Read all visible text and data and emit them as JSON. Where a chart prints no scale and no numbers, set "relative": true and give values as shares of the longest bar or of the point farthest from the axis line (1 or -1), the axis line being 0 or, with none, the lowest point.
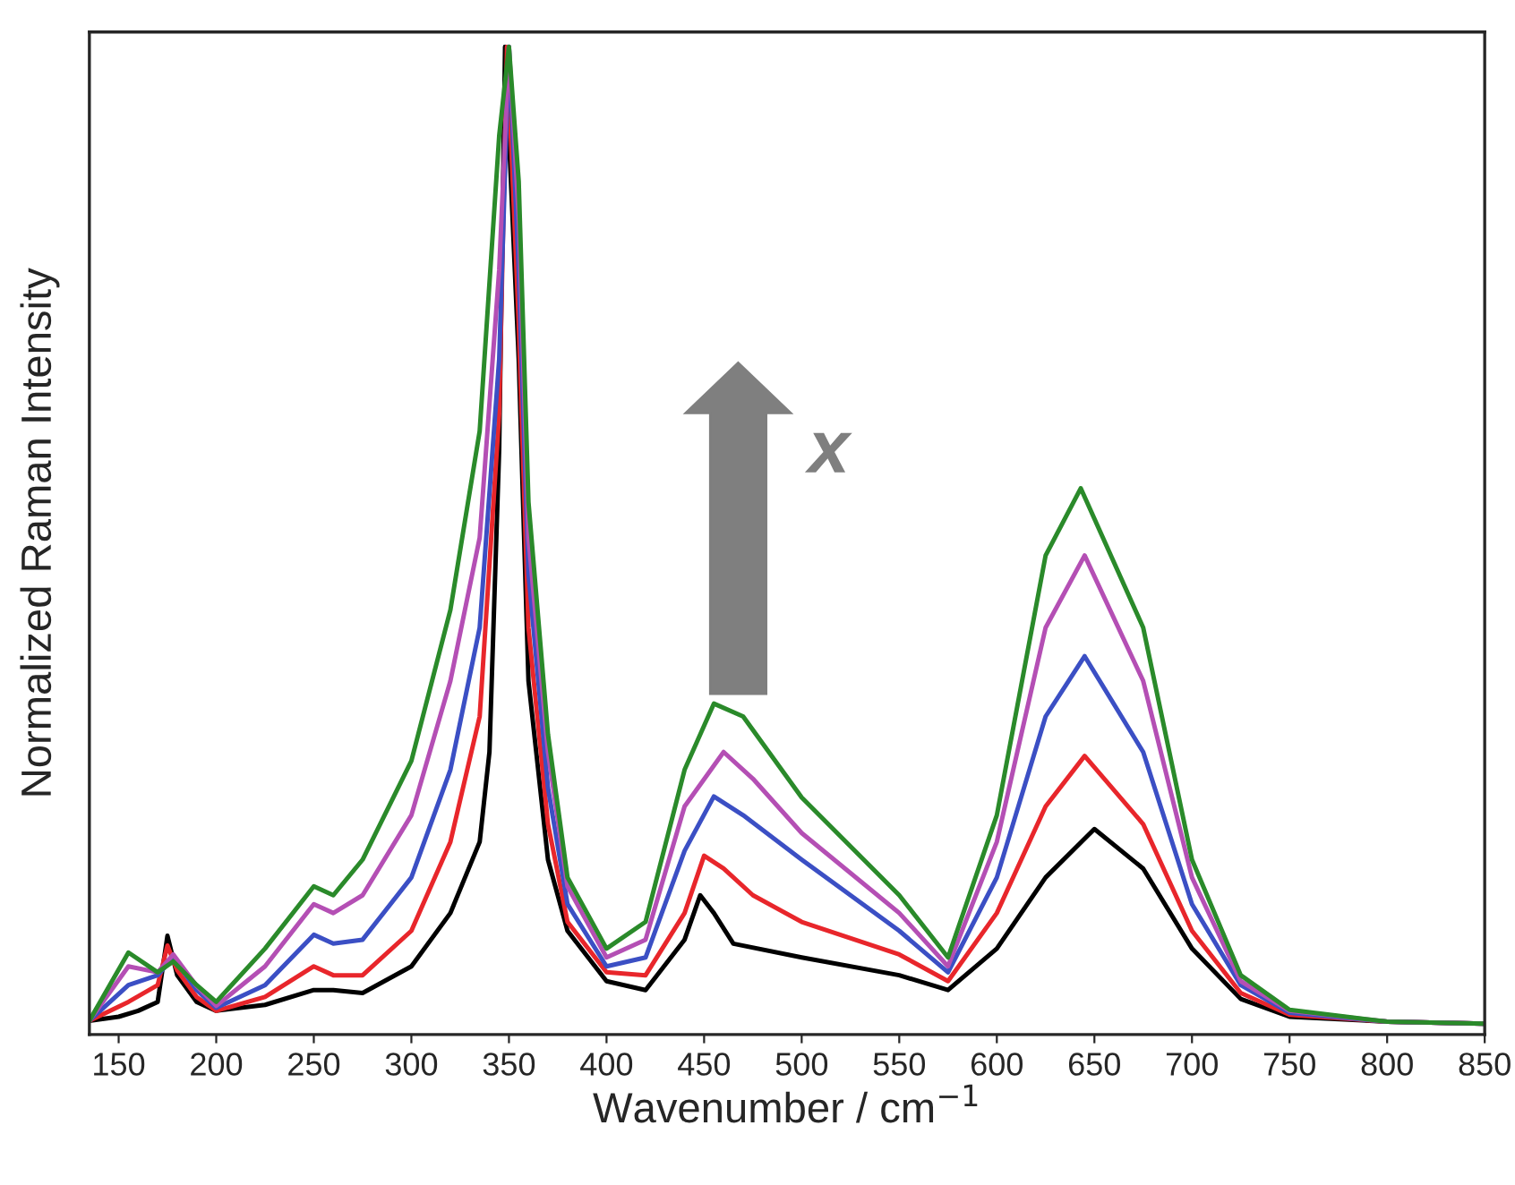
{
  "chart_data": {
    "type": "line",
    "xlabel": "Wavenumber / cm$^{−1}$",
    "ylabel": "Normalized Raman Intensity",
    "relative": true,
    "xlim": [
      135,
      850
    ],
    "xticks": [
      150,
      200,
      250,
      300,
      350,
      400,
      450,
      500,
      550,
      600,
      650,
      700,
      750,
      800,
      850
    ],
    "grid": false,
    "legend": false,
    "tick_labels": "x",
    "annotations": [
      "x"
    ],
    "series": [
      {
        "color": "#000000",
        "x": [
          135,
          150,
          160,
          170,
          175,
          180,
          190,
          200,
          225,
          250,
          260,
          275,
          300,
          320,
          335,
          340,
          345,
          348,
          355,
          360,
          370,
          380,
          400,
          420,
          440,
          448,
          455,
          465,
          500,
          550,
          575,
          600,
          625,
          650,
          675,
          700,
          725,
          750,
          800,
          850
        ],
        "values": [
          0.014,
          0.018,
          0.024,
          0.033,
          0.1,
          0.06,
          0.033,
          0.024,
          0.03,
          0.045,
          0.045,
          0.042,
          0.069,
          0.123,
          0.195,
          0.286,
          0.593,
          1.0,
          0.684,
          0.358,
          0.177,
          0.105,
          0.054,
          0.045,
          0.096,
          0.141,
          0.123,
          0.092,
          0.078,
          0.06,
          0.045,
          0.087,
          0.159,
          0.208,
          0.168,
          0.087,
          0.036,
          0.018,
          0.013,
          0.011
        ]
      },
      {
        "color": "#e8262b",
        "x": [
          135,
          155,
          170,
          175,
          180,
          190,
          200,
          225,
          250,
          260,
          275,
          300,
          320,
          335,
          345,
          349,
          355,
          360,
          370,
          380,
          400,
          420,
          440,
          450,
          460,
          475,
          500,
          550,
          575,
          600,
          625,
          645,
          675,
          700,
          725,
          750,
          800,
          850
        ],
        "values": [
          0.014,
          0.033,
          0.05,
          0.09,
          0.065,
          0.038,
          0.024,
          0.038,
          0.069,
          0.06,
          0.06,
          0.105,
          0.195,
          0.322,
          0.629,
          1.0,
          0.72,
          0.412,
          0.213,
          0.114,
          0.063,
          0.06,
          0.123,
          0.181,
          0.168,
          0.141,
          0.114,
          0.081,
          0.054,
          0.123,
          0.231,
          0.282,
          0.213,
          0.105,
          0.042,
          0.02,
          0.013,
          0.011
        ]
      },
      {
        "color": "#3b4fc4",
        "x": [
          135,
          155,
          170,
          178,
          190,
          200,
          225,
          250,
          260,
          275,
          300,
          320,
          335,
          345,
          350,
          355,
          360,
          370,
          380,
          400,
          420,
          440,
          455,
          470,
          500,
          550,
          575,
          600,
          625,
          645,
          675,
          700,
          725,
          750,
          800,
          850
        ],
        "values": [
          0.014,
          0.05,
          0.06,
          0.078,
          0.045,
          0.027,
          0.05,
          0.101,
          0.092,
          0.096,
          0.159,
          0.268,
          0.412,
          0.684,
          1.0,
          0.774,
          0.467,
          0.25,
          0.132,
          0.069,
          0.078,
          0.186,
          0.241,
          0.222,
          0.177,
          0.105,
          0.063,
          0.159,
          0.322,
          0.383,
          0.286,
          0.132,
          0.05,
          0.022,
          0.013,
          0.011
        ]
      },
      {
        "color": "#b44fb4",
        "x": [
          135,
          155,
          170,
          178,
          190,
          200,
          225,
          250,
          260,
          275,
          300,
          320,
          335,
          345,
          350,
          355,
          360,
          370,
          380,
          400,
          420,
          440,
          460,
          475,
          500,
          550,
          575,
          600,
          625,
          645,
          675,
          700,
          725,
          750,
          800,
          850
        ],
        "values": [
          0.014,
          0.069,
          0.063,
          0.081,
          0.049,
          0.029,
          0.069,
          0.132,
          0.123,
          0.141,
          0.222,
          0.358,
          0.503,
          0.774,
          1.0,
          0.828,
          0.503,
          0.286,
          0.15,
          0.078,
          0.096,
          0.231,
          0.286,
          0.259,
          0.204,
          0.123,
          0.069,
          0.195,
          0.412,
          0.485,
          0.358,
          0.159,
          0.054,
          0.024,
          0.013,
          0.011
        ]
      },
      {
        "color": "#2a8a2a",
        "x": [
          135,
          155,
          170,
          178,
          190,
          200,
          225,
          250,
          260,
          275,
          300,
          320,
          335,
          345,
          350,
          355,
          360,
          370,
          380,
          400,
          420,
          440,
          455,
          470,
          500,
          550,
          575,
          600,
          625,
          643,
          675,
          700,
          725,
          750,
          800,
          850
        ],
        "values": [
          0.014,
          0.083,
          0.063,
          0.074,
          0.05,
          0.033,
          0.087,
          0.15,
          0.141,
          0.177,
          0.277,
          0.43,
          0.611,
          0.91,
          1.0,
          0.864,
          0.539,
          0.304,
          0.159,
          0.087,
          0.114,
          0.268,
          0.335,
          0.322,
          0.24,
          0.141,
          0.078,
          0.222,
          0.485,
          0.553,
          0.412,
          0.177,
          0.06,
          0.025,
          0.013,
          0.011
        ]
      }
    ]
  }
}
